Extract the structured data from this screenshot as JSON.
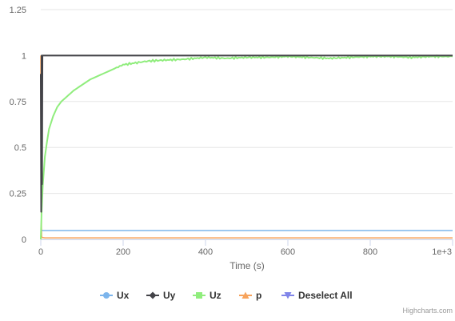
{
  "chart_data": {
    "type": "line",
    "title": "",
    "xlabel": "Time (s)",
    "ylabel": "",
    "xlim": [
      0,
      1000
    ],
    "ylim": [
      0,
      1.25
    ],
    "x_ticks": [
      0,
      200,
      400,
      600,
      800,
      1000
    ],
    "x_tick_labels": [
      "0",
      "200",
      "400",
      "600",
      "800",
      "1e+3"
    ],
    "y_ticks": [
      0,
      0.25,
      0.5,
      0.75,
      1,
      1.25
    ],
    "y_tick_labels": [
      "0",
      "0.25",
      "0.5",
      "0.75",
      "1",
      "1.25"
    ],
    "grid": true,
    "legend": "bottom-center",
    "series": [
      {
        "name": "Ux",
        "color": "#7cb5ec",
        "marker": "circle",
        "x": [
          0,
          2,
          5,
          10,
          50,
          100,
          200,
          400,
          600,
          800,
          1000
        ],
        "y": [
          0.05,
          0.05,
          0.048,
          0.048,
          0.048,
          0.048,
          0.048,
          0.048,
          0.048,
          0.048,
          0.048
        ]
      },
      {
        "name": "Uy",
        "color": "#434348",
        "marker": "diamond",
        "x": [
          0,
          1,
          2,
          3,
          4,
          5,
          10,
          100,
          200,
          400,
          600,
          800,
          1000
        ],
        "y": [
          0.9,
          0.15,
          1.0,
          0.3,
          1.0,
          1.0,
          1.0,
          1.0,
          1.0,
          1.0,
          1.0,
          1.0,
          1.0
        ]
      },
      {
        "name": "Uz",
        "color": "#90ed7d",
        "marker": "square",
        "x": [
          0,
          2,
          5,
          10,
          15,
          20,
          30,
          40,
          50,
          60,
          80,
          100,
          120,
          150,
          180,
          200,
          230,
          260,
          300,
          350,
          400,
          450,
          500,
          550,
          600,
          650,
          700,
          750,
          800,
          850,
          900,
          950,
          1000
        ],
        "y": [
          0.0,
          0.15,
          0.3,
          0.45,
          0.53,
          0.6,
          0.67,
          0.72,
          0.75,
          0.77,
          0.81,
          0.84,
          0.87,
          0.9,
          0.93,
          0.95,
          0.96,
          0.97,
          0.975,
          0.98,
          0.99,
          0.985,
          0.99,
          0.99,
          0.995,
          0.99,
          0.985,
          0.99,
          0.995,
          0.995,
          0.99,
          0.995,
          0.995
        ]
      },
      {
        "name": "p",
        "color": "#f7a35c",
        "marker": "triangle",
        "x": [
          0,
          1,
          2,
          3,
          5,
          10,
          50,
          100,
          200,
          400,
          600,
          800,
          1000
        ],
        "y": [
          1.0,
          0.2,
          0.02,
          0.01,
          0.01,
          0.008,
          0.008,
          0.008,
          0.008,
          0.008,
          0.008,
          0.008,
          0.008
        ]
      }
    ]
  },
  "legend": {
    "items": [
      {
        "label": "Ux",
        "color": "#7cb5ec",
        "marker": "circle"
      },
      {
        "label": "Uy",
        "color": "#434348",
        "marker": "diamond"
      },
      {
        "label": "Uz",
        "color": "#90ed7d",
        "marker": "square"
      },
      {
        "label": "p",
        "color": "#f7a35c",
        "marker": "triangle"
      },
      {
        "label": "Deselect All",
        "color": "#8085e9",
        "marker": "triangle-down"
      }
    ]
  },
  "credits": {
    "label": "Highcharts.com"
  },
  "colors": {
    "grid": "#e6e6e6",
    "axis_line": "#ccd6eb",
    "tick_text": "#666666"
  }
}
